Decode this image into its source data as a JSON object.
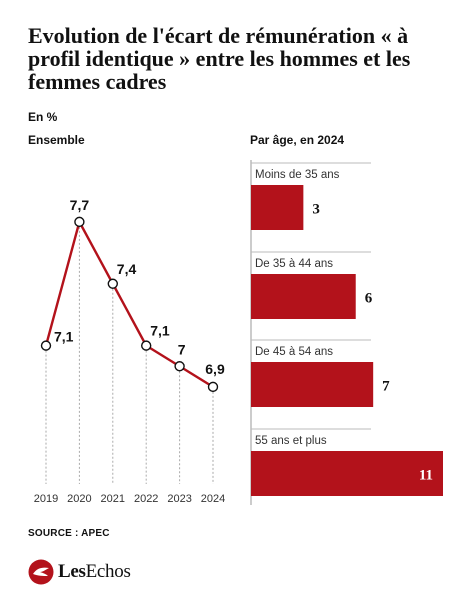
{
  "title": "Evolution de l'écart de rémunération « à profil identique » entre les hommes et les femmes cadres",
  "unit": "En %",
  "source": "SOURCE : APEC",
  "logo": {
    "text_bold": "Les",
    "text_rest": "Echos"
  },
  "colors": {
    "accent": "#b3121b",
    "axis": "#999999",
    "text": "#111111"
  },
  "chart_data": [
    {
      "type": "line",
      "title": "Ensemble",
      "x": [
        "2019",
        "2020",
        "2021",
        "2022",
        "2023",
        "2024"
      ],
      "values": [
        7.1,
        7.7,
        7.4,
        7.1,
        7.0,
        6.9
      ],
      "labels": [
        "7,1",
        "7,7",
        "7,4",
        "7,1",
        "7",
        "6,9"
      ],
      "ylim": [
        6.4,
        8.0
      ],
      "grid": false
    },
    {
      "type": "bar",
      "orientation": "horizontal",
      "title": "Par âge, en 2024",
      "categories": [
        "Moins de 35 ans",
        "De 35 à 44 ans",
        "De 45 à 54 ans",
        "55 ans et plus"
      ],
      "values": [
        3,
        6,
        7,
        11
      ],
      "labels": [
        "3",
        "6",
        "7",
        "11"
      ],
      "xlim": [
        0,
        11
      ]
    }
  ]
}
